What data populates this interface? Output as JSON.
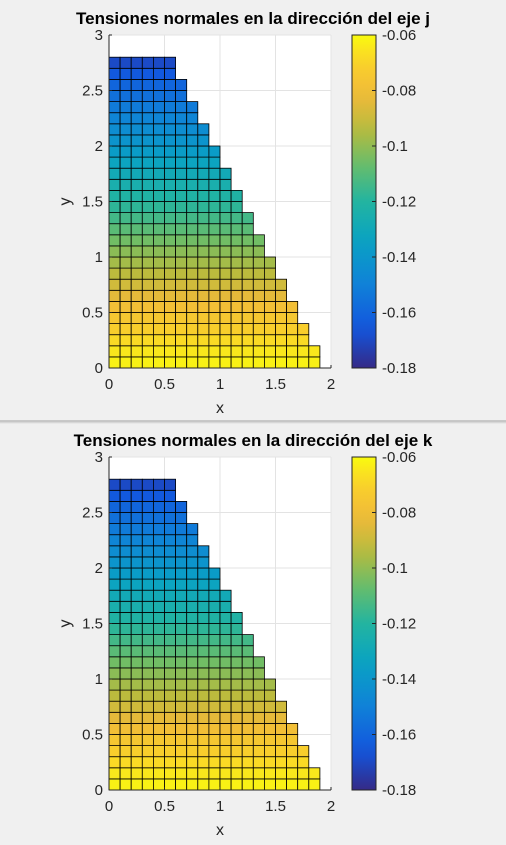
{
  "colors": {
    "colormap": "parula",
    "cell_edge": "#000000",
    "axes_bg": "#ffffff",
    "figure_bg": "#f0f0f0",
    "grid": "#e3e3e3"
  },
  "chart_data": [
    {
      "type": "heatmap",
      "title": "Tensiones normales en la dirección del eje j",
      "xlabel": "x",
      "ylabel": "y",
      "xlim": [
        0,
        2
      ],
      "ylim": [
        0,
        3
      ],
      "xticks": [
        "0",
        "0.5",
        "1",
        "1.5",
        "2"
      ],
      "yticks": [
        "0",
        "0.5",
        "1",
        "1.5",
        "2",
        "2.5",
        "3"
      ],
      "grid": true,
      "domain": "triangle with vertices (0,0), (2,0), (0,3); cells of 0.1 x 0.1",
      "cell_size": [
        0.1,
        0.1
      ],
      "row_x_max": [
        1.9,
        1.9,
        1.8,
        1.8,
        1.7,
        1.7,
        1.6,
        1.6,
        1.5,
        1.5,
        1.4,
        1.4,
        1.3,
        1.3,
        1.2,
        1.2,
        1.1,
        1.1,
        1.0,
        1.0,
        0.9,
        0.9,
        0.8,
        0.8,
        0.7,
        0.7,
        0.6,
        0.6
      ],
      "value_by_y": {
        "y": [
          0.0,
          0.2,
          0.5,
          0.8,
          1.1,
          1.4,
          1.7,
          2.0,
          2.3,
          2.6,
          2.8
        ],
        "value": [
          -0.061,
          -0.066,
          -0.077,
          -0.091,
          -0.103,
          -0.116,
          -0.127,
          -0.139,
          -0.15,
          -0.162,
          -0.172
        ]
      },
      "colorbar": {
        "limits": [
          -0.18,
          -0.06
        ],
        "ticks": [
          "-0.06",
          "-0.08",
          "-0.1",
          "-0.12",
          "-0.14",
          "-0.16",
          "-0.18"
        ],
        "placement": "right"
      }
    },
    {
      "type": "heatmap",
      "title": "Tensiones normales en la dirección del eje k",
      "xlabel": "x",
      "ylabel": "y",
      "xlim": [
        0,
        2
      ],
      "ylim": [
        0,
        3
      ],
      "xticks": [
        "0",
        "0.5",
        "1",
        "1.5",
        "2"
      ],
      "yticks": [
        "0",
        "0.5",
        "1",
        "1.5",
        "2",
        "2.5",
        "3"
      ],
      "grid": true,
      "domain": "triangle with vertices (0,0), (2,0), (0,3); cells of 0.1 x 0.1",
      "cell_size": [
        0.1,
        0.1
      ],
      "row_x_max": [
        1.9,
        1.9,
        1.8,
        1.8,
        1.7,
        1.7,
        1.6,
        1.6,
        1.5,
        1.5,
        1.4,
        1.4,
        1.3,
        1.3,
        1.2,
        1.2,
        1.1,
        1.1,
        1.0,
        1.0,
        0.9,
        0.9,
        0.8,
        0.8,
        0.7,
        0.7,
        0.6,
        0.6
      ],
      "value_by_y": {
        "y": [
          0.0,
          0.2,
          0.5,
          0.8,
          1.1,
          1.4,
          1.7,
          2.0,
          2.3,
          2.6,
          2.8
        ],
        "value": [
          -0.061,
          -0.066,
          -0.077,
          -0.091,
          -0.103,
          -0.116,
          -0.127,
          -0.139,
          -0.15,
          -0.162,
          -0.172
        ]
      },
      "colorbar": {
        "limits": [
          -0.18,
          -0.06
        ],
        "ticks": [
          "-0.06",
          "-0.08",
          "-0.1",
          "-0.12",
          "-0.14",
          "-0.16",
          "-0.18"
        ],
        "placement": "right"
      }
    }
  ]
}
